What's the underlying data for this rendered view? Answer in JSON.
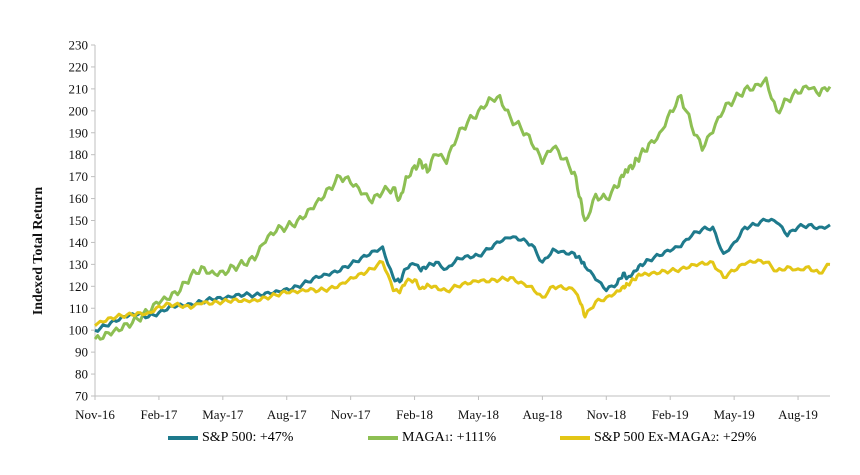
{
  "chart_data": {
    "type": "line",
    "ylabel": "Indexed Total Return",
    "xlabel": "",
    "ylim": [
      70,
      230
    ],
    "y_ticks": [
      "230",
      "220",
      "210",
      "200",
      "190",
      "180",
      "170",
      "160",
      "150",
      "140",
      "130",
      "120",
      "110",
      "100",
      "90",
      "80",
      "70"
    ],
    "x_tick_labels": [
      "Nov-16",
      "Feb-17",
      "May-17",
      "Aug-17",
      "Nov-17",
      "Feb-18",
      "May-18",
      "Aug-18",
      "Nov-18",
      "Feb-19",
      "May-19",
      "Aug-19"
    ],
    "x_range_months": [
      0,
      34.5
    ],
    "grid": false,
    "series": [
      {
        "name": "S&P 500: +47%",
        "legend_text": "S&P 500: +47%",
        "color": "#1e7a8c",
        "x": [
          0,
          0.5,
          1,
          1.5,
          2,
          2.5,
          3,
          3.5,
          4,
          4.5,
          5,
          5.5,
          6,
          6.5,
          7,
          7.5,
          8,
          8.5,
          9,
          9.5,
          10,
          10.5,
          11,
          11.5,
          12,
          12.5,
          13,
          13.5,
          14,
          14.3,
          14.6,
          15,
          15.3,
          15.6,
          16,
          16.5,
          17,
          17.5,
          18,
          18.5,
          19,
          19.5,
          20,
          20.5,
          21,
          21.5,
          22,
          22.5,
          22.8,
          23,
          23.5,
          24,
          24.5,
          24.8,
          25,
          25.3,
          25.6,
          26,
          26.5,
          27,
          27.5,
          28,
          28.5,
          29,
          29.5,
          30,
          30.5,
          31,
          31.5,
          32,
          32.5,
          33,
          33.5,
          34,
          34.5
        ],
        "values": [
          100,
          102,
          104,
          106,
          107,
          106,
          108,
          111,
          112,
          112,
          113,
          114,
          114,
          115,
          116,
          116,
          117,
          118,
          119,
          120,
          122,
          124,
          125,
          127,
          130,
          133,
          136,
          138,
          124,
          122,
          128,
          130,
          127,
          129,
          131,
          128,
          133,
          134,
          134,
          137,
          140,
          142,
          141,
          139,
          131,
          137,
          136,
          135,
          132,
          129,
          123,
          118,
          121,
          126,
          124,
          127,
          130,
          132,
          134,
          136,
          138,
          143,
          146,
          147,
          135,
          140,
          147,
          148,
          150,
          149,
          143,
          147,
          148,
          147,
          148
        ]
      },
      {
        "name": "MAGA: +111%",
        "legend_text": "MAGA",
        "legend_sup": "1",
        "legend_suffix": ": +111%",
        "color": "#8dbf53",
        "x": [
          0,
          0.5,
          1,
          1.5,
          2,
          2.5,
          3,
          3.5,
          4,
          4.5,
          5,
          5.5,
          6,
          6.5,
          7,
          7.5,
          8,
          8.5,
          9,
          9.5,
          10,
          10.5,
          11,
          11.5,
          12,
          12.5,
          13,
          13.5,
          14,
          14.3,
          14.6,
          15,
          15.3,
          15.6,
          16,
          16.5,
          17,
          17.5,
          18,
          18.5,
          19,
          19.5,
          20,
          20.5,
          21,
          21.5,
          22,
          22.5,
          22.8,
          23,
          23.5,
          24,
          24.5,
          24.8,
          25,
          25.3,
          25.6,
          26,
          26.5,
          27,
          27.5,
          28,
          28.5,
          29,
          29.5,
          30,
          30.5,
          31,
          31.5,
          32,
          32.5,
          33,
          33.5,
          34,
          34.5
        ],
        "values": [
          96,
          99,
          101,
          103,
          105,
          108,
          112,
          114,
          118,
          125,
          129,
          127,
          127,
          129,
          130,
          132,
          140,
          145,
          147,
          150,
          155,
          160,
          165,
          170,
          167,
          162,
          158,
          163,
          165,
          160,
          170,
          175,
          177,
          172,
          180,
          176,
          188,
          195,
          200,
          206,
          207,
          197,
          192,
          185,
          176,
          183,
          178,
          172,
          160,
          150,
          162,
          160,
          165,
          170,
          172,
          175,
          180,
          185,
          190,
          200,
          207,
          193,
          182,
          190,
          200,
          205,
          210,
          212,
          215,
          200,
          205,
          208,
          210,
          207,
          211
        ]
      },
      {
        "name": "S&P 500 Ex-MAGA: +29%",
        "legend_text": "S&P 500 Ex-MAGA",
        "legend_sup": "2",
        "legend_suffix": ": +29%",
        "color": "#e3c616",
        "x": [
          0,
          0.5,
          1,
          1.5,
          2,
          2.5,
          3,
          3.5,
          4,
          4.5,
          5,
          5.5,
          6,
          6.5,
          7,
          7.5,
          8,
          8.5,
          9,
          9.5,
          10,
          10.5,
          11,
          11.5,
          12,
          12.5,
          13,
          13.5,
          14,
          14.3,
          14.6,
          15,
          15.3,
          15.6,
          16,
          16.5,
          17,
          17.5,
          18,
          18.5,
          19,
          19.5,
          20,
          20.5,
          21,
          21.5,
          22,
          22.5,
          22.8,
          23,
          23.5,
          24,
          24.5,
          24.8,
          25,
          25.3,
          25.6,
          26,
          26.5,
          27,
          27.5,
          28,
          28.5,
          29,
          29.5,
          30,
          30.5,
          31,
          31.5,
          32,
          32.5,
          33,
          33.5,
          34,
          34.5
        ],
        "values": [
          102,
          104,
          106,
          107,
          108,
          108,
          111,
          112,
          111,
          110,
          112,
          112,
          113,
          114,
          114,
          114,
          115,
          116,
          117,
          117,
          118,
          118,
          119,
          121,
          124,
          126,
          128,
          131,
          118,
          117,
          122,
          123,
          119,
          121,
          120,
          118,
          120,
          121,
          122,
          122,
          123,
          124,
          122,
          120,
          115,
          120,
          119,
          118,
          112,
          106,
          113,
          115,
          118,
          120,
          121,
          123,
          125,
          125,
          126,
          127,
          128,
          130,
          131,
          131,
          124,
          127,
          130,
          131,
          131,
          127,
          129,
          128,
          129,
          126,
          130
        ]
      }
    ]
  }
}
